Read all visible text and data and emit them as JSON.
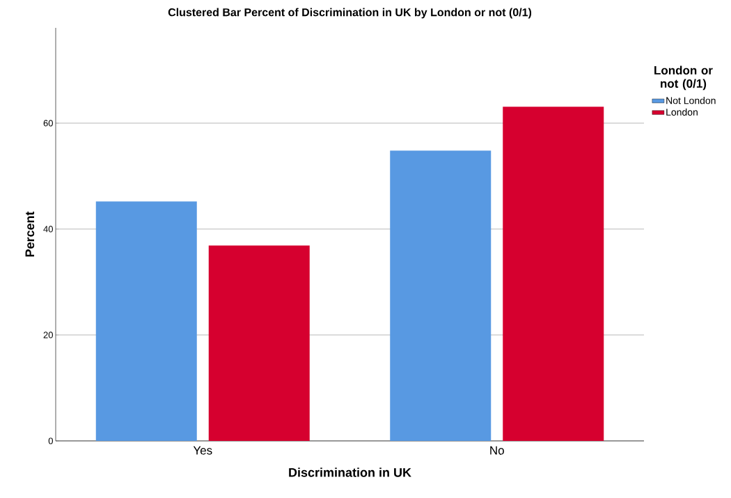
{
  "chart_data": {
    "type": "bar",
    "title": "Clustered Bar Percent of Discrimination in UK by London or not (0/1)",
    "xlabel": "Discrimination in UK",
    "ylabel": "Percent",
    "legend_title": "London or not (0/1)",
    "categories": [
      "Yes",
      "No"
    ],
    "series": [
      {
        "name": "Not London",
        "color": "#5899e2",
        "values": [
          45.2,
          54.8
        ]
      },
      {
        "name": "London",
        "color": "#d6002f",
        "values": [
          36.9,
          63.1
        ]
      }
    ],
    "ylim": [
      0,
      78
    ],
    "yticks": [
      0,
      20,
      40,
      60
    ],
    "grid": "y",
    "legend": "top right"
  }
}
